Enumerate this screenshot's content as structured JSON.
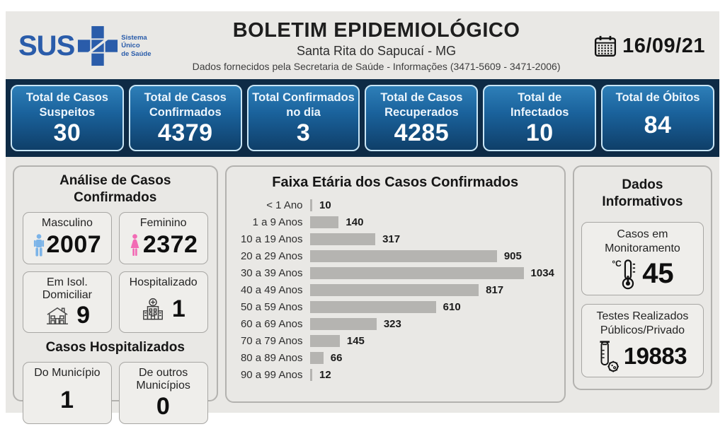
{
  "header": {
    "logo": {
      "text": "SUS",
      "tagline1": "Sistema",
      "tagline2": "Único",
      "tagline3": "de Saúde"
    },
    "title": "BOLETIM EPIDEMIOLÓGICO",
    "subtitle": "Santa Rita do Sapucaí - MG",
    "info_line": "Dados fornecidos pela Secretaria de Saúde - Informações (3471-5609 - 3471-2006)",
    "date": "16/09/21"
  },
  "summary_cards": [
    {
      "label": "Total de Casos Suspeitos",
      "value": "30"
    },
    {
      "label": "Total de Casos Confirmados",
      "value": "4379"
    },
    {
      "label": "Total Confirmados no dia",
      "value": "3"
    },
    {
      "label": "Total de Casos Recuperados",
      "value": "4285"
    },
    {
      "label": "Total de Infectados",
      "value": "10"
    },
    {
      "label": "Total de Óbitos",
      "value": "84"
    }
  ],
  "analysis_panel": {
    "title": "Análise de Casos Confirmados",
    "cards": [
      {
        "label": "Masculino",
        "value": "2007",
        "icon": "male-icon"
      },
      {
        "label": "Feminino",
        "value": "2372",
        "icon": "female-icon"
      },
      {
        "label": "Em Isol. Domiciliar",
        "value": "9",
        "icon": "house-icon"
      },
      {
        "label": "Hospitalizado",
        "value": "1",
        "icon": "hospital-icon"
      }
    ],
    "hospitalized_section": {
      "title": "Casos Hospitalizados",
      "cards": [
        {
          "label": "Do Município",
          "value": "1"
        },
        {
          "label": "De outros Municípios",
          "value": "0"
        }
      ]
    }
  },
  "chart_data": {
    "type": "bar",
    "orientation": "horizontal",
    "title": "Faixa Etária dos Casos Confirmados",
    "categories": [
      "< 1 Ano",
      "1 a 9 Anos",
      "10 a 19 Anos",
      "20 a 29 Anos",
      "30 a 39 Anos",
      "40 a 49 Anos",
      "50 a 59 Anos",
      "60 a 69 Anos",
      "70 a 79 Anos",
      "80 a 89 Anos",
      "90 a 99 Anos"
    ],
    "values": [
      10,
      140,
      317,
      905,
      1034,
      817,
      610,
      323,
      145,
      66,
      12
    ],
    "xlim": [
      0,
      1100
    ],
    "bar_color": "#b5b4b1",
    "value_labels": true,
    "grid": false,
    "legend": false
  },
  "info_panel": {
    "title": "Dados Informativos",
    "cards": [
      {
        "label": "Casos em Monitoramento",
        "value": "45",
        "icon": "thermometer-icon"
      },
      {
        "label": "Testes Realizados Públicos/Privado",
        "value": "19883",
        "icon": "testtube-icon"
      }
    ]
  },
  "colors": {
    "page_bg": "#e9e8e5",
    "band_bg": "#0e2b46",
    "card_gradient_top": "#2e7fb8",
    "card_gradient_bottom": "#0f3f69",
    "card_border": "#c9e6f6",
    "sus_blue": "#2a5caa",
    "male_icon": "#7cb4e8",
    "female_icon": "#f26bb5",
    "bar_gray": "#b5b4b1"
  }
}
